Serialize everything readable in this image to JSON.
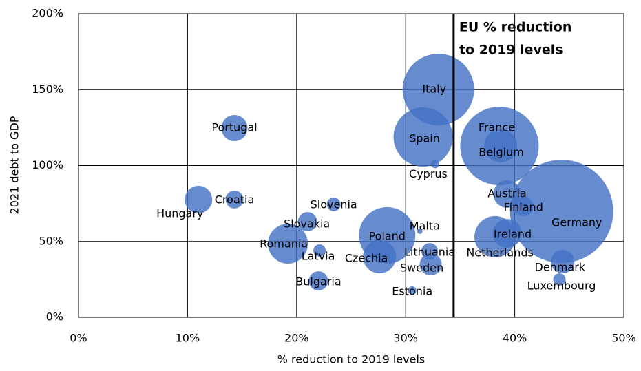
{
  "chart_data": {
    "type": "scatter",
    "x_label": "% reduction to 2019 levels",
    "y_label": "2021 debt to GDP",
    "color": "#4472c4",
    "grid": true,
    "xlim": [
      0,
      50
    ],
    "ylim": [
      0,
      200
    ],
    "xticks": [
      {
        "value": 0,
        "label": "0%"
      },
      {
        "value": 10,
        "label": "10%"
      },
      {
        "value": 20,
        "label": "20%"
      },
      {
        "value": 30,
        "label": "30%"
      },
      {
        "value": 40,
        "label": "40%"
      },
      {
        "value": 50,
        "label": "50%"
      }
    ],
    "yticks": [
      {
        "value": 0,
        "label": "0%"
      },
      {
        "value": 50,
        "label": "50%"
      },
      {
        "value": 100,
        "label": "100%"
      },
      {
        "value": 150,
        "label": "150%"
      },
      {
        "value": 200,
        "label": "200%"
      }
    ],
    "reference_line": {
      "value": 34.4,
      "label_lines": [
        "EU % reduction",
        "to 2019 levels"
      ]
    },
    "labels": [
      "Italy",
      "Spain",
      "Cyprus",
      "France",
      "Belgium",
      "Austria",
      "Finland",
      "Germany",
      "Ireland",
      "Netherlands",
      "Denmark",
      "Luxembourg",
      "Malta",
      "Lithuania",
      "Sweden",
      "Estonia",
      "Poland",
      "Czechia",
      "Slovenia",
      "Slovakia",
      "Latvia",
      "Bulgaria",
      "Romania",
      "Croatia",
      "Portugal",
      "Hungary"
    ],
    "x": [
      33.0,
      31.6,
      32.7,
      38.6,
      38.7,
      39.3,
      40.8,
      44.3,
      39.3,
      38.2,
      44.4,
      44.1,
      31.3,
      32.2,
      32.3,
      30.6,
      28.3,
      27.6,
      23.4,
      21.0,
      22.1,
      22.0,
      19.2,
      14.3,
      14.3,
      11.0
    ],
    "y": [
      150.1,
      118.8,
      101,
      112.9,
      113,
      81.2,
      73,
      69.8,
      55.3,
      53.1,
      36.7,
      24.9,
      56.7,
      43.5,
      34.9,
      17.7,
      54,
      39.9,
      74.4,
      63,
      44,
      24,
      48.5,
      77.6,
      124.7,
      77.6
    ],
    "sizes": [
      1730,
      1183,
      23,
      2080,
      369,
      256,
      125,
      3600,
      282,
      576,
      185,
      52,
      10,
      92,
      164,
      23,
      1076,
      369,
      64,
      125,
      52,
      125,
      538,
      108,
      231,
      256
    ]
  }
}
